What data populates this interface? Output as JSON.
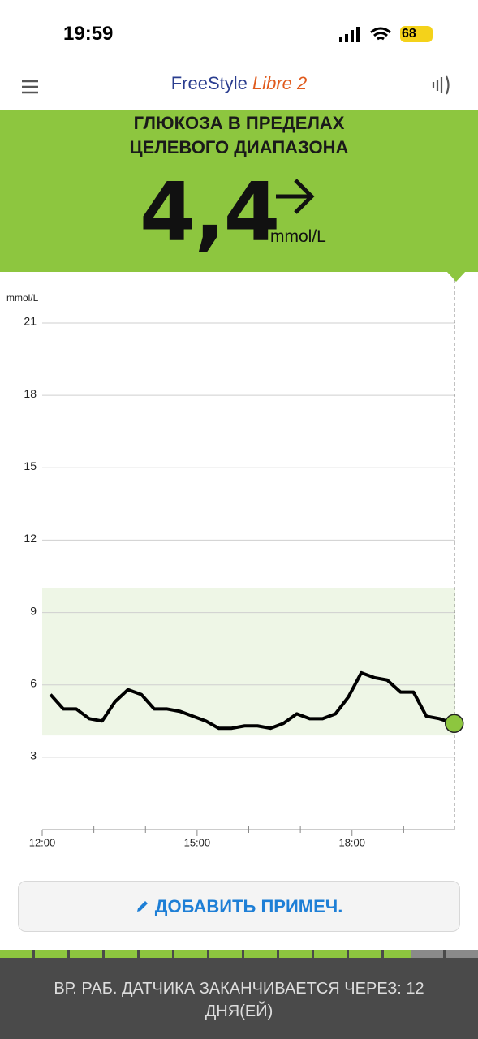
{
  "status_bar": {
    "time": "19:59",
    "battery": "68"
  },
  "header": {
    "brand": "FreeStyle",
    "product": "Libre 2"
  },
  "banner": {
    "status_lines": [
      "ГЛЮКОЗА В ПРЕДЕЛАХ",
      "ЦЕЛЕВОГО ДИАПАЗОНА"
    ],
    "value": "4,4",
    "unit": "mmol/L"
  },
  "chart_data": {
    "type": "line",
    "y_label": "mmol/L",
    "x": [
      12.16,
      12.41,
      12.66,
      12.91,
      13.16,
      13.41,
      13.66,
      13.92,
      14.17,
      14.42,
      14.67,
      14.92,
      15.17,
      15.42,
      15.67,
      15.92,
      16.17,
      16.42,
      16.67,
      16.93,
      17.18,
      17.43,
      17.68,
      17.93,
      18.18,
      18.43,
      18.68,
      18.94,
      19.19,
      19.44,
      19.69,
      19.98
    ],
    "values": [
      5.6,
      5.0,
      5.0,
      4.6,
      4.5,
      5.3,
      5.8,
      5.6,
      5.0,
      5.0,
      4.9,
      4.7,
      4.5,
      4.2,
      4.2,
      4.3,
      4.3,
      4.2,
      4.4,
      4.8,
      4.6,
      4.6,
      4.8,
      5.5,
      6.5,
      6.3,
      6.2,
      5.7,
      5.7,
      4.7,
      4.6,
      4.4
    ],
    "color": "#000000",
    "current_color": "#8dc63f",
    "target_range": [
      3.9,
      10
    ],
    "target_color": "#eef6e6",
    "xlim": [
      12,
      20
    ],
    "ylim": [
      0,
      21
    ],
    "xticks": [
      {
        "value": 12,
        "label": "12:00"
      },
      {
        "value": 15,
        "label": "15:00"
      },
      {
        "value": 18,
        "label": "18:00"
      }
    ],
    "minor_xticks": [
      13,
      14,
      16,
      17,
      19
    ],
    "yticks": [
      3,
      6,
      9,
      12,
      15,
      18,
      21
    ],
    "grid": true
  },
  "button": {
    "label": "ДОБАВИТЬ ПРИМЕЧ."
  },
  "footer": {
    "text": "ВР. РАБ. ДАТЧИКА ЗАКАНЧИВАЕТСЯ ЧЕРЕЗ: 12 ДНЯ(ЕЙ)"
  }
}
